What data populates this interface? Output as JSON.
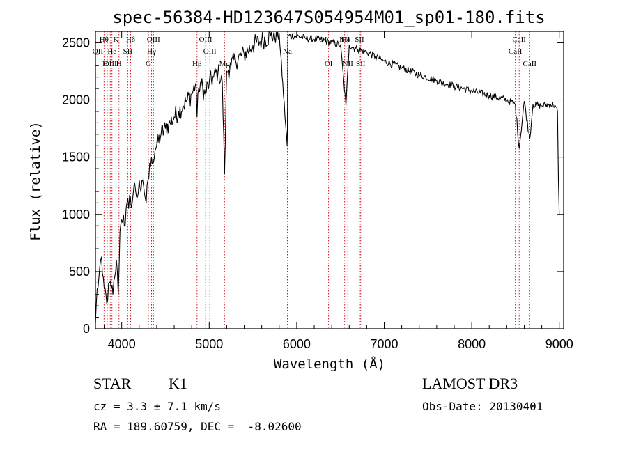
{
  "chart_data": {
    "type": "line",
    "title": "spec-56384-HD123647S054954M01_sp01-180.fits",
    "xlabel": "Wavelength (Å)",
    "ylabel": "Flux (relative)",
    "xlim": [
      3700,
      9050
    ],
    "ylim": [
      0,
      2600
    ],
    "xticks": [
      "4000",
      "5000",
      "6000",
      "7000",
      "8000",
      "9000"
    ],
    "yticks": [
      "0",
      "500",
      "1000",
      "1500",
      "2000",
      "2500"
    ],
    "series": [
      {
        "name": "flux",
        "x": [
          3700,
          3720,
          3740,
          3760,
          3780,
          3800,
          3820,
          3840,
          3860,
          3880,
          3900,
          3920,
          3940,
          3960,
          3980,
          4000,
          4020,
          4040,
          4060,
          4080,
          4100,
          4120,
          4140,
          4160,
          4180,
          4200,
          4220,
          4250,
          4280,
          4300,
          4320,
          4340,
          4360,
          4380,
          4400,
          4450,
          4500,
          4550,
          4600,
          4650,
          4700,
          4750,
          4800,
          4850,
          4861,
          4880,
          4900,
          4950,
          5000,
          5050,
          5100,
          5150,
          5175,
          5200,
          5250,
          5300,
          5400,
          5500,
          5600,
          5700,
          5800,
          5890,
          5893,
          5900,
          6000,
          6100,
          6200,
          6300,
          6400,
          6500,
          6563,
          6600,
          6700,
          6800,
          6900,
          7000,
          7200,
          7400,
          7600,
          7800,
          8000,
          8200,
          8400,
          8498,
          8542,
          8600,
          8662,
          8700,
          8800,
          8900,
          8950,
          8980,
          8990,
          9000
        ],
        "y": [
          50,
          350,
          450,
          600,
          480,
          350,
          300,
          250,
          400,
          350,
          300,
          450,
          600,
          300,
          850,
          950,
          1000,
          900,
          1100,
          1050,
          1150,
          1100,
          1250,
          1200,
          1150,
          1300,
          1200,
          1250,
          1100,
          1300,
          1450,
          1500,
          1450,
          1550,
          1600,
          1700,
          1750,
          1800,
          1850,
          1900,
          1950,
          2000,
          2050,
          2150,
          1850,
          2100,
          2150,
          2050,
          2150,
          2200,
          2250,
          2150,
          1350,
          2250,
          2300,
          2350,
          2400,
          2480,
          2520,
          2560,
          2580,
          1600,
          1700,
          2560,
          2560,
          2540,
          2530,
          2520,
          2500,
          2480,
          1950,
          2480,
          2440,
          2420,
          2380,
          2340,
          2280,
          2220,
          2170,
          2120,
          2080,
          2040,
          2000,
          1960,
          1580,
          1990,
          1660,
          1960,
          1950,
          1960,
          1955,
          1900,
          1300,
          1000
        ]
      }
    ],
    "lines": [
      {
        "label": "Hθ",
        "x": 3798,
        "row": 0
      },
      {
        "label": "OII",
        "x": 3727,
        "row": 1
      },
      {
        "label": "OIII",
        "x": 3869,
        "row": 2
      },
      {
        "label": "Hη",
        "x": 3835,
        "row": 2
      },
      {
        "label": "K",
        "x": 3934,
        "row": 0
      },
      {
        "label": "He",
        "x": 3889,
        "row": 1
      },
      {
        "label": "H",
        "x": 3969,
        "row": 2
      },
      {
        "label": "Hδ",
        "x": 4102,
        "row": 0
      },
      {
        "label": "SII",
        "x": 4069,
        "row": 1
      },
      {
        "label": "OIII",
        "x": 4363,
        "row": 0
      },
      {
        "label": "Hγ",
        "x": 4341,
        "row": 1
      },
      {
        "label": "G",
        "x": 4305,
        "row": 2
      },
      {
        "label": "Hβ",
        "x": 4861,
        "row": 2
      },
      {
        "label": "OIII",
        "x": 4959,
        "row": 0
      },
      {
        "label": "OIII",
        "x": 5007,
        "row": 1
      },
      {
        "label": "Mg",
        "x": 5175,
        "row": 2
      },
      {
        "label": "Na",
        "x": 5893,
        "row": 1
      },
      {
        "label": "OI",
        "x": 6300,
        "row": 0
      },
      {
        "label": "OI",
        "x": 6364,
        "row": 2
      },
      {
        "label": "NII",
        "x": 6548,
        "row": 0
      },
      {
        "label": "Hα",
        "x": 6563,
        "row": 0
      },
      {
        "label": "NII",
        "x": 6584,
        "row": 2
      },
      {
        "label": "SII",
        "x": 6717,
        "row": 0
      },
      {
        "label": "SII",
        "x": 6731,
        "row": 2
      },
      {
        "label": "CaII",
        "x": 8498,
        "row": 1
      },
      {
        "label": "CaII",
        "x": 8542,
        "row": 0
      },
      {
        "label": "CaII",
        "x": 8662,
        "row": 2
      }
    ]
  },
  "info": {
    "object_class": "STAR",
    "subclass": "K1",
    "survey": "LAMOST DR3",
    "cz": "cz = 3.3 ± 7.1 km/s",
    "obs_date": "Obs-Date: 20130401",
    "coords": "RA = 189.60759, DEC =  -8.02600"
  }
}
